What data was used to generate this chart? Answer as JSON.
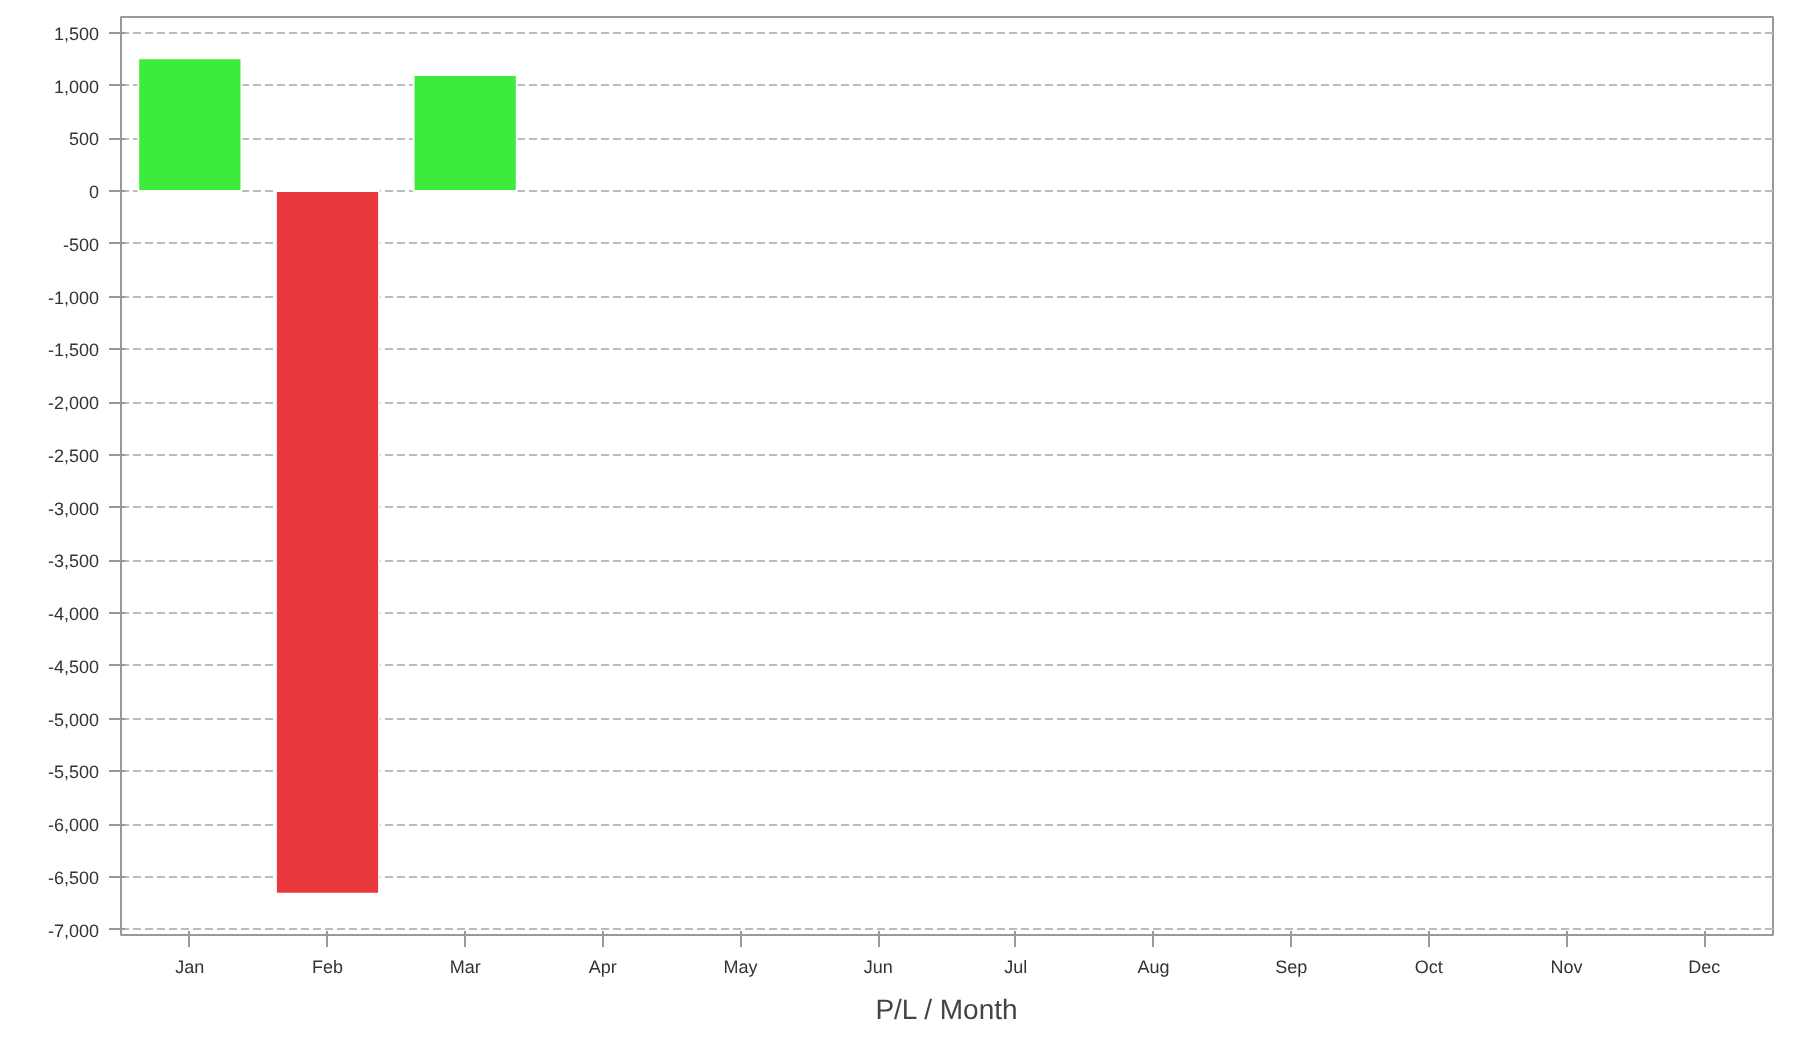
{
  "chart_data": {
    "type": "bar",
    "xlabel": "P/L / Month",
    "categories": [
      "Jan",
      "Feb",
      "Mar",
      "Apr",
      "May",
      "Jun",
      "Jul",
      "Aug",
      "Sep",
      "Oct",
      "Nov",
      "Dec"
    ],
    "values": [
      1260,
      -6660,
      1100,
      null,
      null,
      null,
      null,
      null,
      null,
      null,
      null,
      null
    ],
    "colors": [
      "#3deb3d",
      "#e8383d",
      "#3deb3d",
      null,
      null,
      null,
      null,
      null,
      null,
      null,
      null,
      null
    ],
    "ylim": [
      -7050,
      1650
    ],
    "yticks": [
      {
        "value": 1500,
        "label": "1,500"
      },
      {
        "value": 1000,
        "label": "1,000"
      },
      500,
      0,
      {
        "value": -500,
        "label": "-500"
      },
      {
        "value": -1000,
        "label": "-1,000"
      },
      {
        "value": -1500,
        "label": "-1,500"
      },
      {
        "value": -2000,
        "label": "-2,000"
      },
      {
        "value": -2500,
        "label": "-2,500"
      },
      {
        "value": -3000,
        "label": "-3,000"
      },
      {
        "value": -3500,
        "label": "-3,500"
      },
      {
        "value": -4000,
        "label": "-4,000"
      },
      {
        "value": -4500,
        "label": "-4,500"
      },
      {
        "value": -5000,
        "label": "-5,000"
      },
      {
        "value": -5500,
        "label": "-5,500"
      },
      {
        "value": -6000,
        "label": "-6,000"
      },
      {
        "value": -6500,
        "label": "-6,500"
      },
      {
        "value": -7000,
        "label": "-7,000"
      }
    ],
    "grid": "y"
  }
}
